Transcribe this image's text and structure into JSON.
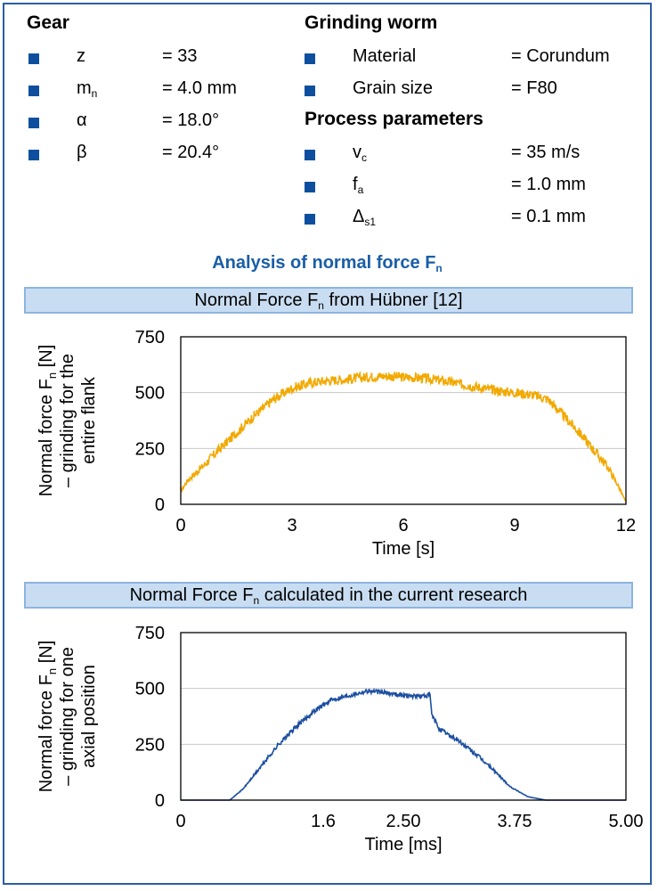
{
  "gear": {
    "title": "Gear",
    "items": [
      {
        "sym": "z",
        "sub": "",
        "value": "= 33"
      },
      {
        "sym": "m",
        "sub": "n",
        "value": "= 4.0 mm"
      },
      {
        "sym": "α",
        "sub": "",
        "value": "= 18.0°"
      },
      {
        "sym": "β",
        "sub": "",
        "value": "= 20.4°"
      }
    ]
  },
  "worm": {
    "title": "Grinding worm",
    "items": [
      {
        "sym": "Material",
        "sub": "",
        "value": "= Corundum"
      },
      {
        "sym": "Grain size",
        "sub": "",
        "value": "= F80"
      }
    ]
  },
  "process": {
    "title": "Process parameters",
    "items": [
      {
        "sym": "v",
        "sub": "c",
        "value": "= 35 m/s"
      },
      {
        "sym": "f",
        "sub": "a",
        "value": "= 1.0 mm"
      },
      {
        "sym": "Δ",
        "sub": "s1",
        "value": "= 0.1 mm"
      }
    ]
  },
  "analysis": {
    "title_main": "Analysis of normal force F",
    "title_sub": "n"
  },
  "colors": {
    "accent": "#1a5ea8",
    "series_top": "#f2a900",
    "series_bottom": "#1c4fa0"
  },
  "chart_data": [
    {
      "type": "line",
      "banner_main": "Normal Force F",
      "banner_sub": "n",
      "banner_rest": " from Hübner [12]",
      "ylabel_lines": [
        "Normal force F_n [N]",
        "– grinding for the",
        "entire flank"
      ],
      "xlabel": "Time [s]",
      "xlim": [
        0,
        12
      ],
      "ylim": [
        0,
        750
      ],
      "xticks": [
        "0",
        "3",
        "6",
        "9",
        "12"
      ],
      "yticks": [
        "0",
        "250",
        "500",
        "750"
      ],
      "grid": true,
      "noise": 22,
      "series": [
        {
          "x": [
            0,
            0.2,
            0.6,
            1,
            1.5,
            2,
            2.5,
            3,
            3.5,
            4,
            4.5,
            5,
            5.5,
            6,
            6.5,
            7,
            7.5,
            8,
            8.5,
            9,
            9.5,
            9.9,
            10.3,
            10.7,
            11.1,
            11.5,
            11.8,
            12
          ],
          "y": [
            60,
            110,
            170,
            240,
            320,
            400,
            470,
            520,
            545,
            555,
            560,
            570,
            575,
            570,
            565,
            555,
            540,
            525,
            510,
            500,
            490,
            470,
            400,
            330,
            250,
            170,
            80,
            10
          ]
        }
      ]
    },
    {
      "type": "line",
      "banner_main": "Normal Force F",
      "banner_sub": "n",
      "banner_rest": " calculated in the current research",
      "ylabel_lines": [
        "Normal force F_n [N]",
        "– grinding for one",
        "axial position"
      ],
      "xlabel": "Time [ms]",
      "xlim": [
        0,
        5.0
      ],
      "ylim": [
        0,
        750
      ],
      "xticks": [
        "0",
        "1.6",
        "2.50",
        "3.75",
        "5.00"
      ],
      "yticks": [
        "0",
        "250",
        "500",
        "750"
      ],
      "grid": true,
      "noise": 10,
      "series": [
        {
          "x": [
            0,
            0.55,
            0.7,
            0.9,
            1.1,
            1.3,
            1.5,
            1.7,
            1.9,
            2.1,
            2.3,
            2.5,
            2.7,
            2.8,
            2.82,
            2.9,
            3.1,
            3.3,
            3.5,
            3.7,
            3.9,
            4.1,
            5.0
          ],
          "y": [
            0,
            0,
            50,
            150,
            250,
            330,
            400,
            450,
            470,
            490,
            480,
            470,
            465,
            470,
            380,
            320,
            270,
            210,
            140,
            60,
            15,
            0,
            0
          ]
        }
      ]
    }
  ]
}
